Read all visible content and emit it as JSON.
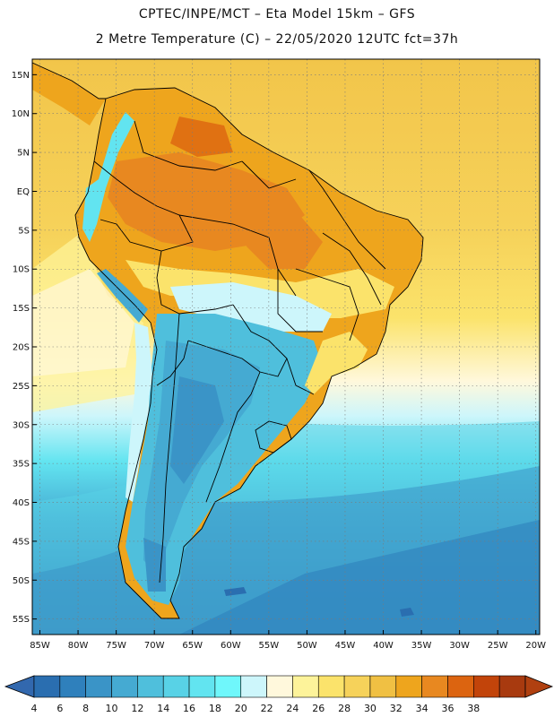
{
  "header": {
    "line1": "CPTEC/INPE/MCT –  Eta Model 15km – GFS",
    "line2": "2 Metre Temperature (C) – 22/05/2020 12UTC fct=37h"
  },
  "map": {
    "lon_range": [
      -86,
      -19.5
    ],
    "lat_range": [
      -57,
      17
    ],
    "lat_ticks": [
      "15N",
      "10N",
      "5N",
      "EQ",
      "5S",
      "10S",
      "15S",
      "20S",
      "25S",
      "30S",
      "35S",
      "40S",
      "45S",
      "50S",
      "55S"
    ],
    "lat_values": [
      15,
      10,
      5,
      0,
      -5,
      -10,
      -15,
      -20,
      -25,
      -30,
      -35,
      -40,
      -45,
      -50,
      -55
    ],
    "lon_ticks": [
      "85W",
      "80W",
      "75W",
      "70W",
      "65W",
      "60W",
      "55W",
      "50W",
      "45W",
      "40W",
      "35W",
      "30W",
      "25W",
      "20W"
    ],
    "lon_values": [
      -85,
      -80,
      -75,
      -70,
      -65,
      -60,
      -55,
      -50,
      -45,
      -40,
      -35,
      -30,
      -25,
      -20
    ]
  },
  "colorbar": {
    "labels": [
      "4",
      "6",
      "8",
      "10",
      "12",
      "14",
      "16",
      "18",
      "20",
      "22",
      "24",
      "26",
      "28",
      "30",
      "32",
      "34",
      "36",
      "38"
    ],
    "colors": [
      "#2a6eb0",
      "#2f80bc",
      "#3a94c7",
      "#45aad2",
      "#4fbfdc",
      "#58d2e6",
      "#62e4f0",
      "#6ff7fb",
      "#cdf6fb",
      "#fff8dc",
      "#fdf39a",
      "#fbe36b",
      "#f6d25a",
      "#f0c043",
      "#eea51d",
      "#e88820",
      "#dc6410",
      "#c2440a",
      "#a83a0f"
    ],
    "low_end_color": "#3268ae",
    "high_end_color": "#b04010"
  }
}
